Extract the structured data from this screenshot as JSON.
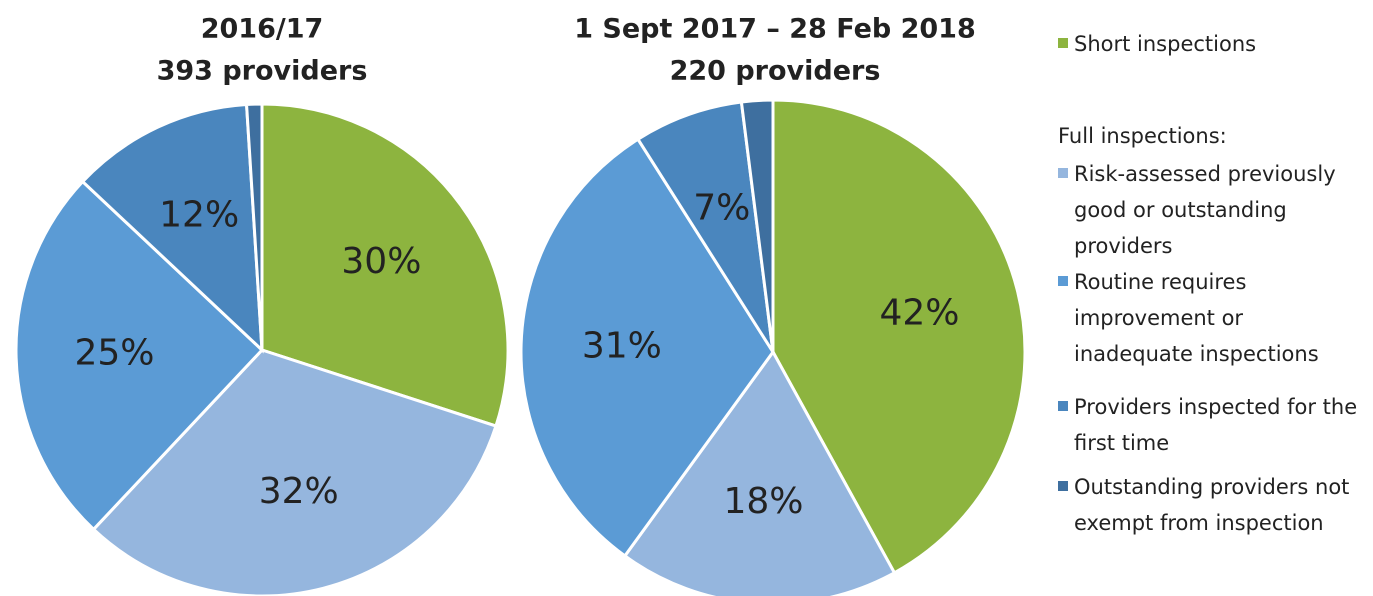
{
  "chart_data": [
    {
      "type": "pie",
      "title": "2016/17",
      "subtitle": "393 providers",
      "categories": [
        "Short inspections",
        "Risk-assessed previously good or outstanding providers",
        "Routine requires improvement or inadequate inspections",
        "Providers inspected for the first time",
        "Outstanding providers not exempt from inspection"
      ],
      "values": [
        30,
        32,
        25,
        12,
        1
      ],
      "value_labels": [
        "30%",
        "32%",
        "25%",
        "12%",
        null
      ],
      "colors": [
        "#8db43f",
        "#95b6de",
        "#5b9bd5",
        "#4a86be",
        "#3e6f9f"
      ]
    },
    {
      "type": "pie",
      "title": "1 Sept 2017 – 28 Feb 2018",
      "subtitle": "220 providers",
      "categories": [
        "Short inspections",
        "Risk-assessed previously good or outstanding providers",
        "Routine requires improvement or inadequate inspections",
        "Providers inspected for the first time",
        "Outstanding providers not exempt from inspection"
      ],
      "values": [
        42,
        18,
        31,
        7,
        2
      ],
      "value_labels": [
        "42%",
        "18%",
        "31%",
        "7%",
        null
      ],
      "colors": [
        "#8db43f",
        "#95b6de",
        "#5b9bd5",
        "#4a86be",
        "#3e6f9f"
      ]
    }
  ],
  "legend_heading": "Full inspections:"
}
